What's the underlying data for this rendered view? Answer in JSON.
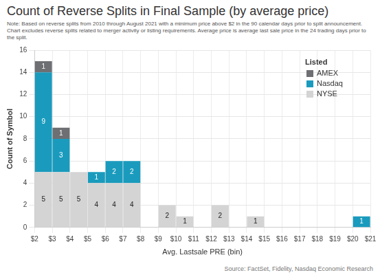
{
  "chart_data": {
    "type": "bar",
    "title": "Count of Reverse Splits in Final Sample (by average price)",
    "subtitle": "Note: Based on reverse splits from 2010 through August 2021 with a minimum price above $2 in the 90 calendar days prior to split announcement. Chart excludes reverse splits related to merger activity or listing requirements. Average price is average last sale price in the 24 trading days prior to the split.",
    "source": "Source: FactSet, Fidelity, Nasdaq Economic Research",
    "x_label": "Avg. Lastsale PRE (bin)",
    "y_label": "Count of Symbol",
    "legend_title": "Listed",
    "bins": [
      2,
      3,
      4,
      5,
      6,
      7,
      8,
      9,
      10,
      11,
      12,
      13,
      14,
      15,
      16,
      17,
      18,
      19,
      20,
      21
    ],
    "series": [
      {
        "name": "NYSE",
        "color": "#d4d4d4",
        "values": [
          5,
          5,
          5,
          4,
          4,
          4,
          null,
          2,
          1,
          null,
          2,
          null,
          1,
          null,
          null,
          null,
          null,
          null,
          null
        ]
      },
      {
        "name": "Nasdaq",
        "color": "#1a9bbd",
        "values": [
          9,
          3,
          null,
          1,
          2,
          2,
          null,
          null,
          null,
          null,
          null,
          null,
          null,
          null,
          null,
          null,
          null,
          null,
          1
        ]
      },
      {
        "name": "AMEX",
        "color": "#6e6f72",
        "values": [
          1,
          1,
          null,
          null,
          null,
          null,
          null,
          null,
          null,
          null,
          null,
          null,
          null,
          null,
          null,
          null,
          null,
          null,
          null
        ]
      }
    ],
    "xlim": [
      2,
      21
    ],
    "xticks": [
      {
        "value": 2,
        "label": "$2"
      },
      {
        "value": 3,
        "label": "$3"
      },
      {
        "value": 4,
        "label": "$4"
      },
      {
        "value": 5,
        "label": "$5"
      },
      {
        "value": 6,
        "label": "$6"
      },
      {
        "value": 7,
        "label": "$7"
      },
      {
        "value": 8,
        "label": "$8"
      },
      {
        "value": 9,
        "label": "$9"
      },
      {
        "value": 10,
        "label": "$10"
      },
      {
        "value": 11,
        "label": "$11"
      },
      {
        "value": 12,
        "label": "$12"
      },
      {
        "value": 13,
        "label": "$13"
      },
      {
        "value": 14,
        "label": "$14"
      },
      {
        "value": 15,
        "label": "$15"
      },
      {
        "value": 16,
        "label": "$16"
      },
      {
        "value": 17,
        "label": "$17"
      },
      {
        "value": 18,
        "label": "$18"
      },
      {
        "value": 19,
        "label": "$19"
      },
      {
        "value": 20,
        "label": "$20"
      },
      {
        "value": 21,
        "label": "$21"
      }
    ],
    "ylim": [
      0,
      16
    ],
    "yticks": [
      0,
      2,
      4,
      6,
      8,
      10,
      12,
      14,
      16
    ],
    "stacked": true,
    "data_labels": true,
    "grid": true,
    "legend": "top right"
  }
}
